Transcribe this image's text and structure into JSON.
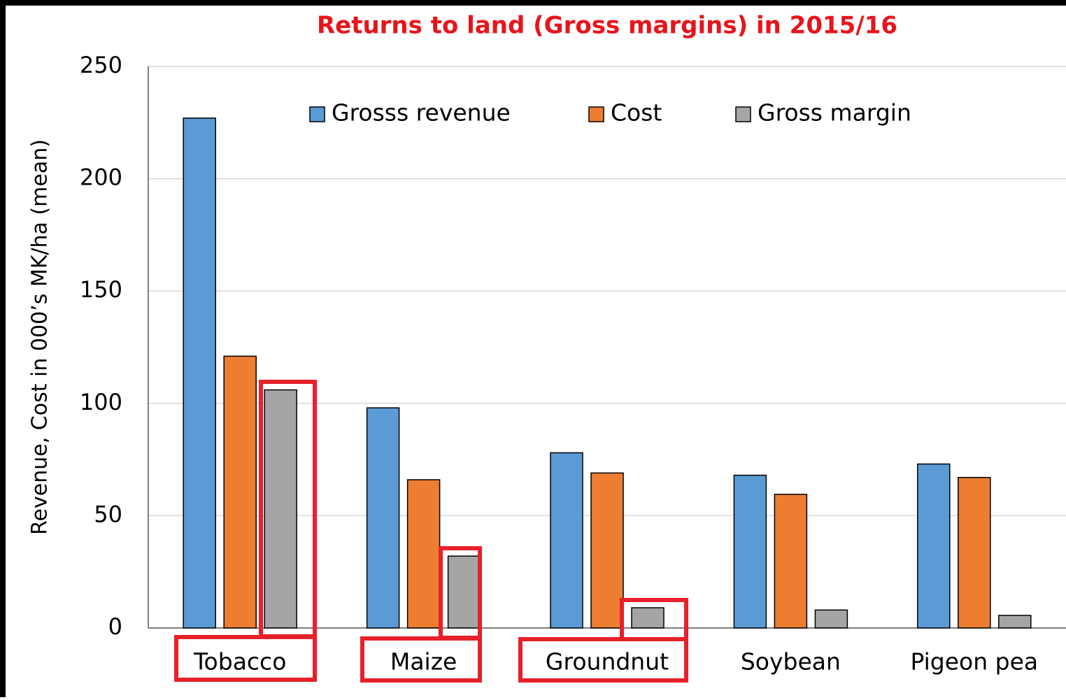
{
  "chart_data": {
    "type": "bar",
    "title": "Returns to land (Gross margins) in 2015/16",
    "y_label": "Revenue, Cost in 000’s MK/ha (mean)",
    "categories": [
      "Tobacco",
      "Maize",
      "Groundnut",
      "Soybean",
      "Pigeon pea"
    ],
    "series": [
      {
        "name": "Grosss revenue",
        "color": "#5b9bd5",
        "values": [
          227,
          98,
          78,
          68,
          73
        ]
      },
      {
        "name": "Cost",
        "color": "#ed7d31",
        "values": [
          121,
          66,
          69,
          59.5,
          67
        ]
      },
      {
        "name": "Gross margin",
        "color": "#a5a5a5",
        "values": [
          106,
          32,
          9,
          8,
          5.6
        ]
      }
    ],
    "ylim": [
      0,
      250
    ],
    "yticks": [
      0,
      50,
      100,
      150,
      200,
      250
    ],
    "grid": true,
    "legend": "top"
  }
}
